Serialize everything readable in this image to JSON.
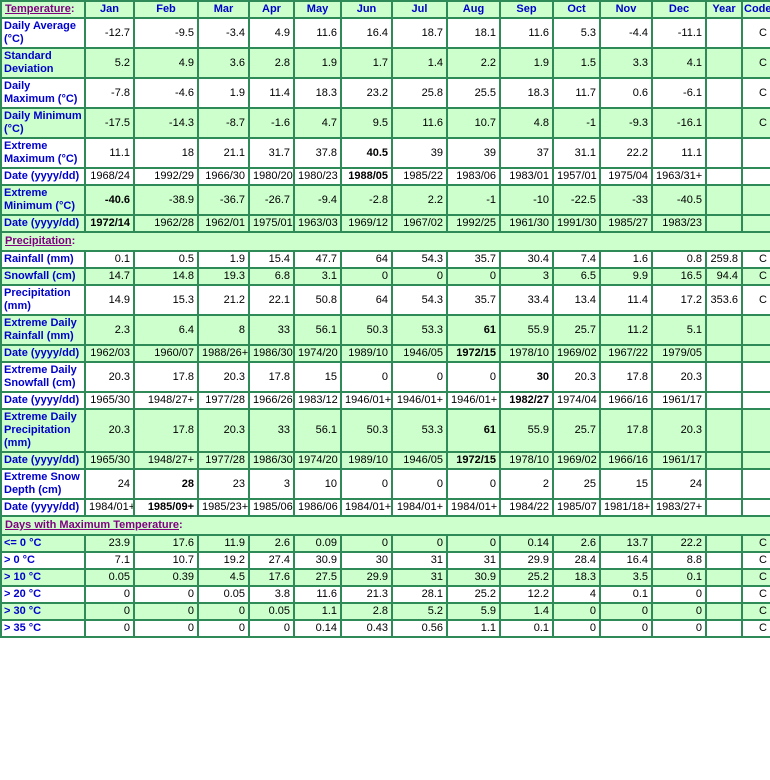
{
  "colors": {
    "border_green": "#2e8b57",
    "row_pale_green": "#ccffcc",
    "row_white": "#ffffff",
    "label_blue": "#0000cc",
    "section_link_purple": "#800080",
    "data_text": "#000000"
  },
  "table": {
    "top_header": {
      "label": "Temperature:"
    },
    "columns": [
      "Jan",
      "Feb",
      "Mar",
      "Apr",
      "May",
      "Jun",
      "Jul",
      "Aug",
      "Sep",
      "Oct",
      "Nov",
      "Dec",
      "Year",
      "Code"
    ],
    "sections": [
      {
        "name": "temperature",
        "header": null,
        "rows": [
          {
            "label": "Daily Average (°C)",
            "bg": "white",
            "values": [
              "-12.7",
              "-9.5",
              "-3.4",
              "4.9",
              "11.6",
              "16.4",
              "18.7",
              "18.1",
              "11.6",
              "5.3",
              "-4.4",
              "-11.1"
            ],
            "year": "",
            "code": "C",
            "bold": []
          },
          {
            "label": "Standard Deviation",
            "bg": "green",
            "values": [
              "5.2",
              "4.9",
              "3.6",
              "2.8",
              "1.9",
              "1.7",
              "1.4",
              "2.2",
              "1.9",
              "1.5",
              "3.3",
              "4.1"
            ],
            "year": "",
            "code": "C",
            "bold": []
          },
          {
            "label": "Daily Maximum (°C)",
            "bg": "white",
            "values": [
              "-7.8",
              "-4.6",
              "1.9",
              "11.4",
              "18.3",
              "23.2",
              "25.8",
              "25.5",
              "18.3",
              "11.7",
              "0.6",
              "-6.1"
            ],
            "year": "",
            "code": "C",
            "bold": []
          },
          {
            "label": "Daily Minimum (°C)",
            "bg": "green",
            "values": [
              "-17.5",
              "-14.3",
              "-8.7",
              "-1.6",
              "4.7",
              "9.5",
              "11.6",
              "10.7",
              "4.8",
              "-1",
              "-9.3",
              "-16.1"
            ],
            "year": "",
            "code": "C",
            "bold": []
          },
          {
            "label": "Extreme Maximum (°C)",
            "bg": "white",
            "values": [
              "11.1",
              "18",
              "21.1",
              "31.7",
              "37.8",
              "40.5",
              "39",
              "39",
              "37",
              "31.1",
              "22.2",
              "11.1"
            ],
            "year": "",
            "code": "",
            "bold": [
              5
            ]
          },
          {
            "label": "Date (yyyy/dd)",
            "bg": "white",
            "values": [
              "1968/24",
              "1992/29",
              "1966/30",
              "1980/20",
              "1980/23",
              "1988/05",
              "1985/22",
              "1983/06",
              "1983/01",
              "1957/01",
              "1975/04",
              "1963/31+"
            ],
            "year": "",
            "code": "",
            "bold": [
              5
            ]
          },
          {
            "label": "Extreme Minimum (°C)",
            "bg": "green",
            "values": [
              "-40.6",
              "-38.9",
              "-36.7",
              "-26.7",
              "-9.4",
              "-2.8",
              "2.2",
              "-1",
              "-10",
              "-22.5",
              "-33",
              "-40.5"
            ],
            "year": "",
            "code": "",
            "bold": [
              0
            ]
          },
          {
            "label": "Date (yyyy/dd)",
            "bg": "green",
            "values": [
              "1972/14",
              "1962/28",
              "1962/01",
              "1975/01",
              "1963/03",
              "1969/12",
              "1967/02",
              "1992/25",
              "1961/30",
              "1991/30",
              "1985/27",
              "1983/23"
            ],
            "year": "",
            "code": "",
            "bold": [
              0
            ]
          }
        ]
      },
      {
        "name": "precipitation",
        "header": "Precipitation:",
        "rows": [
          {
            "label": "Rainfall (mm)",
            "bg": "white",
            "values": [
              "0.1",
              "0.5",
              "1.9",
              "15.4",
              "47.7",
              "64",
              "54.3",
              "35.7",
              "30.4",
              "7.4",
              "1.6",
              "0.8"
            ],
            "year": "259.8",
            "code": "C",
            "bold": []
          },
          {
            "label": "Snowfall (cm)",
            "bg": "green",
            "values": [
              "14.7",
              "14.8",
              "19.3",
              "6.8",
              "3.1",
              "0",
              "0",
              "0",
              "3",
              "6.5",
              "9.9",
              "16.5"
            ],
            "year": "94.4",
            "code": "C",
            "bold": []
          },
          {
            "label": "Precipitation (mm)",
            "bg": "white",
            "values": [
              "14.9",
              "15.3",
              "21.2",
              "22.1",
              "50.8",
              "64",
              "54.3",
              "35.7",
              "33.4",
              "13.4",
              "11.4",
              "17.2"
            ],
            "year": "353.6",
            "code": "C",
            "bold": []
          },
          {
            "label": "Extreme Daily Rainfall (mm)",
            "bg": "green",
            "values": [
              "2.3",
              "6.4",
              "8",
              "33",
              "56.1",
              "50.3",
              "53.3",
              "61",
              "55.9",
              "25.7",
              "11.2",
              "5.1"
            ],
            "year": "",
            "code": "",
            "bold": [
              7
            ]
          },
          {
            "label": "Date (yyyy/dd)",
            "bg": "green",
            "values": [
              "1962/03",
              "1960/07",
              "1988/26+",
              "1986/30",
              "1974/20",
              "1989/10",
              "1946/05",
              "1972/15",
              "1978/10",
              "1969/02",
              "1967/22",
              "1979/05"
            ],
            "year": "",
            "code": "",
            "bold": [
              7
            ]
          },
          {
            "label": "Extreme Daily Snowfall (cm)",
            "bg": "white",
            "values": [
              "20.3",
              "17.8",
              "20.3",
              "17.8",
              "15",
              "0",
              "0",
              "0",
              "30",
              "20.3",
              "17.8",
              "20.3"
            ],
            "year": "",
            "code": "",
            "bold": [
              8
            ]
          },
          {
            "label": "Date (yyyy/dd)",
            "bg": "white",
            "values": [
              "1965/30",
              "1948/27+",
              "1977/28",
              "1966/26",
              "1983/12",
              "1946/01+",
              "1946/01+",
              "1946/01+",
              "1982/27",
              "1974/04",
              "1966/16",
              "1961/17"
            ],
            "year": "",
            "code": "",
            "bold": [
              8
            ]
          },
          {
            "label": "Extreme Daily Precipitation (mm)",
            "bg": "green",
            "values": [
              "20.3",
              "17.8",
              "20.3",
              "33",
              "56.1",
              "50.3",
              "53.3",
              "61",
              "55.9",
              "25.7",
              "17.8",
              "20.3"
            ],
            "year": "",
            "code": "",
            "bold": [
              7
            ]
          },
          {
            "label": "Date (yyyy/dd)",
            "bg": "green",
            "values": [
              "1965/30",
              "1948/27+",
              "1977/28",
              "1986/30",
              "1974/20",
              "1989/10",
              "1946/05",
              "1972/15",
              "1978/10",
              "1969/02",
              "1966/16",
              "1961/17"
            ],
            "year": "",
            "code": "",
            "bold": [
              7
            ]
          },
          {
            "label": "Extreme Snow Depth (cm)",
            "bg": "white",
            "values": [
              "24",
              "28",
              "23",
              "3",
              "10",
              "0",
              "0",
              "0",
              "2",
              "25",
              "15",
              "24"
            ],
            "year": "",
            "code": "",
            "bold": [
              1
            ]
          },
          {
            "label": "Date (yyyy/dd)",
            "bg": "white",
            "values": [
              "1984/01+",
              "1985/09+",
              "1985/23+",
              "1985/06",
              "1986/06",
              "1984/01+",
              "1984/01+",
              "1984/01+",
              "1984/22",
              "1985/07",
              "1981/18+",
              "1983/27+"
            ],
            "year": "",
            "code": "",
            "bold": [
              1
            ]
          }
        ]
      },
      {
        "name": "days-with-maximum-temperature",
        "header": "Days with Maximum Temperature:",
        "rows": [
          {
            "label": "<= 0 °C",
            "bg": "green",
            "values": [
              "23.9",
              "17.6",
              "11.9",
              "2.6",
              "0.09",
              "0",
              "0",
              "0",
              "0.14",
              "2.6",
              "13.7",
              "22.2"
            ],
            "year": "",
            "code": "C",
            "bold": []
          },
          {
            "label": "> 0 °C",
            "bg": "white",
            "values": [
              "7.1",
              "10.7",
              "19.2",
              "27.4",
              "30.9",
              "30",
              "31",
              "31",
              "29.9",
              "28.4",
              "16.4",
              "8.8"
            ],
            "year": "",
            "code": "C",
            "bold": []
          },
          {
            "label": "> 10 °C",
            "bg": "green",
            "values": [
              "0.05",
              "0.39",
              "4.5",
              "17.6",
              "27.5",
              "29.9",
              "31",
              "30.9",
              "25.2",
              "18.3",
              "3.5",
              "0.1"
            ],
            "year": "",
            "code": "C",
            "bold": []
          },
          {
            "label": "> 20 °C",
            "bg": "white",
            "values": [
              "0",
              "0",
              "0.05",
              "3.8",
              "11.6",
              "21.3",
              "28.1",
              "25.2",
              "12.2",
              "4",
              "0.1",
              "0"
            ],
            "year": "",
            "code": "C",
            "bold": []
          },
          {
            "label": "> 30 °C",
            "bg": "green",
            "values": [
              "0",
              "0",
              "0",
              "0.05",
              "1.1",
              "2.8",
              "5.2",
              "5.9",
              "1.4",
              "0",
              "0",
              "0"
            ],
            "year": "",
            "code": "C",
            "bold": []
          },
          {
            "label": "> 35 °C",
            "bg": "white",
            "values": [
              "0",
              "0",
              "0",
              "0",
              "0.14",
              "0.43",
              "0.56",
              "1.1",
              "0.1",
              "0",
              "0",
              "0"
            ],
            "year": "",
            "code": "C",
            "bold": []
          }
        ]
      }
    ]
  }
}
